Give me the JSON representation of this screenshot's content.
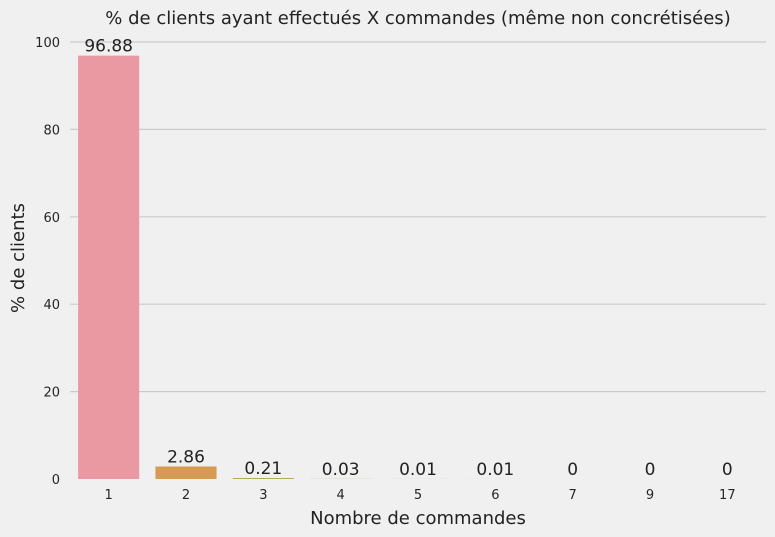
{
  "chart_data": {
    "type": "bar",
    "title": "% de clients ayant effectués X commandes (même non concrétisées)",
    "xlabel": "Nombre de commandes",
    "ylabel": "% de clients",
    "categories": [
      "1",
      "2",
      "3",
      "4",
      "5",
      "6",
      "7",
      "9",
      "17"
    ],
    "values": [
      96.88,
      2.86,
      0.21,
      0.03,
      0.01,
      0.01,
      0,
      0,
      0
    ],
    "data_labels": [
      "96.88",
      "2.86",
      "0.21",
      "0.03",
      "0.01",
      "0.01",
      "0",
      "0",
      "0"
    ],
    "ylim": [
      0,
      100
    ],
    "yticks": [
      "0",
      "20",
      "40",
      "60",
      "80",
      "100"
    ],
    "grid": "horizontal",
    "colors": [
      "#ea98a2",
      "#d79a52",
      "#b2a34a",
      "#8fab4d",
      "#53b45f",
      "#54b59e",
      "#57b3c4",
      "#8ab3df",
      "#c7a7e3"
    ],
    "background": "#f0f0f0"
  }
}
